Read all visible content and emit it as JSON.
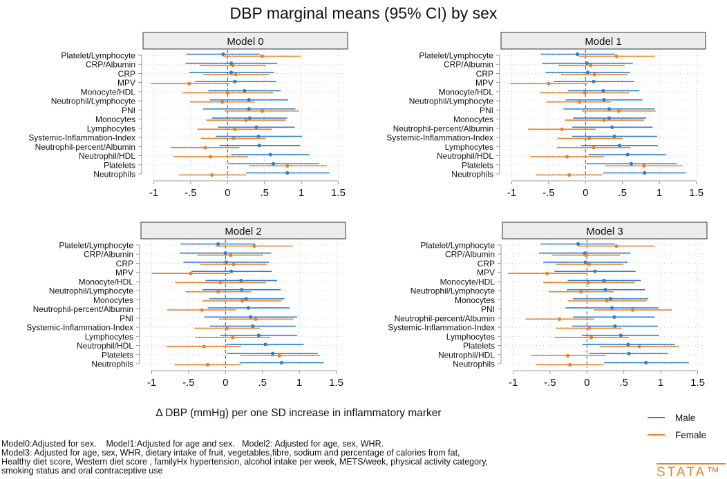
{
  "chart_data": {
    "type": "forest",
    "title": "DBP marginal means (95% CI) by sex",
    "xlabel": "Δ DBP (mmHg) per one SD increase in inflammatory marker",
    "xlim": [
      -1,
      1.5
    ],
    "xticks": [
      -1,
      -0.5,
      0,
      0.5,
      1,
      1.5
    ],
    "xtick_labels": [
      "-1",
      "-.5",
      "0",
      ".5",
      "1",
      "1.5"
    ],
    "grid": true,
    "legend": {
      "position": "bottom-right",
      "entries": [
        {
          "name": "Male",
          "color": "#2a7fd4"
        },
        {
          "name": "Female",
          "color": "#f07f22"
        }
      ]
    },
    "colors": {
      "male": "#2a7fd4",
      "female": "#f07f22",
      "header_fill": "#ececec"
    },
    "panels": [
      {
        "title": "Model 0",
        "rows": [
          {
            "label": "Platelet/Lymphocyte",
            "male": [
              -0.06,
              -0.56,
              0.44
            ],
            "female": [
              0.47,
              -0.06,
              0.99
            ]
          },
          {
            "label": "CRP/Albumin",
            "male": [
              0.05,
              -0.57,
              0.67
            ],
            "female": [
              0.07,
              -0.38,
              0.52
            ]
          },
          {
            "label": "CRP",
            "male": [
              0.05,
              -0.52,
              0.63
            ],
            "female": [
              0.11,
              -0.33,
              0.56
            ]
          },
          {
            "label": "MPV",
            "male": [
              0.1,
              -0.44,
              0.66
            ],
            "female": [
              -0.52,
              -1.04,
              0.02
            ]
          },
          {
            "label": "Monocyte/HDL",
            "male": [
              0.23,
              -0.26,
              0.72
            ],
            "female": [
              0.0,
              -0.61,
              0.62
            ]
          },
          {
            "label": "Neutrophil/Lymphocyte",
            "male": [
              0.29,
              -0.24,
              0.82
            ],
            "female": [
              -0.07,
              -0.51,
              0.37
            ]
          },
          {
            "label": "PNI",
            "male": [
              0.29,
              -0.33,
              0.92
            ],
            "female": [
              0.47,
              -0.04,
              0.97
            ]
          },
          {
            "label": "Monocytes",
            "male": [
              0.3,
              -0.21,
              0.81
            ],
            "female": [
              0.25,
              -0.29,
              0.79
            ]
          },
          {
            "label": "Lymphocytes",
            "male": [
              0.39,
              -0.13,
              0.91
            ],
            "female": [
              0.1,
              -0.41,
              0.6
            ]
          },
          {
            "label": "Systemic-Inflammation-Index",
            "male": [
              0.42,
              -0.16,
              1.01
            ],
            "female": [
              0.08,
              -0.36,
              0.52
            ]
          },
          {
            "label": "Neutrophil-percent/Albumin",
            "male": [
              0.43,
              -0.11,
              0.98
            ],
            "female": [
              -0.3,
              -0.77,
              0.16
            ]
          },
          {
            "label": "Neutrophil/HDL",
            "male": [
              0.58,
              0.05,
              1.11
            ],
            "female": [
              -0.23,
              -0.73,
              0.28
            ]
          },
          {
            "label": "Platelets",
            "male": [
              0.62,
              0.01,
              1.24
            ],
            "female": [
              0.81,
              0.29,
              1.35
            ]
          },
          {
            "label": "Neutrophils",
            "male": [
              0.81,
              0.25,
              1.38
            ],
            "female": [
              -0.21,
              -0.66,
              0.25
            ]
          }
        ]
      },
      {
        "title": "Model 1",
        "rows": [
          {
            "label": "Platelet/Lymphocyte",
            "male": [
              -0.11,
              -0.61,
              0.4
            ],
            "female": [
              0.42,
              -0.09,
              0.94
            ]
          },
          {
            "label": "CRP/Albumin",
            "male": [
              0.02,
              -0.59,
              0.64
            ],
            "female": [
              0.07,
              -0.37,
              0.53
            ]
          },
          {
            "label": "CRP",
            "male": [
              0.03,
              -0.54,
              0.6
            ],
            "female": [
              0.12,
              -0.33,
              0.57
            ]
          },
          {
            "label": "MPV",
            "male": [
              0.11,
              -0.43,
              0.66
            ],
            "female": [
              -0.5,
              -1.02,
              0.03
            ]
          },
          {
            "label": "Monocyte/HDL",
            "male": [
              0.24,
              -0.24,
              0.73
            ],
            "female": [
              -0.01,
              -0.62,
              0.59
            ]
          },
          {
            "label": "Neutrophil/Lymphocyte",
            "male": [
              0.25,
              -0.27,
              0.77
            ],
            "female": [
              -0.08,
              -0.53,
              0.35
            ]
          },
          {
            "label": "PNI",
            "male": [
              0.32,
              -0.3,
              0.94
            ],
            "female": [
              0.45,
              -0.05,
              0.95
            ]
          },
          {
            "label": "Monocytes",
            "male": [
              0.32,
              -0.17,
              0.82
            ],
            "female": [
              0.25,
              -0.28,
              0.79
            ]
          },
          {
            "label": "Neutrophil-percent/Albumin",
            "male": [
              0.36,
              -0.18,
              0.91
            ],
            "female": [
              -0.32,
              -0.78,
              0.14
            ]
          },
          {
            "label": "Systemic-Inflammation-Index",
            "male": [
              0.39,
              -0.18,
              0.97
            ],
            "female": [
              0.05,
              -0.38,
              0.5
            ]
          },
          {
            "label": "Lymphocytes",
            "male": [
              0.46,
              -0.06,
              0.98
            ],
            "female": [
              0.11,
              -0.39,
              0.61
            ]
          },
          {
            "label": "Neutrophil/HDL",
            "male": [
              0.57,
              0.04,
              1.09
            ],
            "female": [
              -0.25,
              -0.75,
              0.25
            ]
          },
          {
            "label": "Platelets",
            "male": [
              0.62,
              0.01,
              1.24
            ],
            "female": [
              0.79,
              0.26,
              1.32
            ]
          },
          {
            "label": "Neutrophils",
            "male": [
              0.8,
              0.24,
              1.36
            ],
            "female": [
              -0.22,
              -0.67,
              0.23
            ]
          }
        ]
      },
      {
        "title": "Model 2",
        "rows": [
          {
            "label": "Platelet/Lymphocyte",
            "male": [
              -0.1,
              -0.61,
              0.4
            ],
            "female": [
              0.39,
              -0.14,
              0.91
            ]
          },
          {
            "label": "CRP/Albumin",
            "male": [
              0.0,
              -0.62,
              0.62
            ],
            "female": [
              0.07,
              -0.38,
              0.51
            ]
          },
          {
            "label": "CRP",
            "male": [
              0.01,
              -0.57,
              0.59
            ],
            "female": [
              0.11,
              -0.34,
              0.56
            ]
          },
          {
            "label": "MPV",
            "male": [
              0.08,
              -0.46,
              0.63
            ],
            "female": [
              -0.47,
              -1.0,
              0.06
            ]
          },
          {
            "label": "Monocyte/HDL",
            "male": [
              0.21,
              -0.27,
              0.7
            ],
            "female": [
              -0.07,
              -0.68,
              0.55
            ]
          },
          {
            "label": "Neutrophil/Lymphocyte",
            "male": [
              0.22,
              -0.31,
              0.75
            ],
            "female": [
              -0.1,
              -0.54,
              0.35
            ]
          },
          {
            "label": "Monocytes",
            "male": [
              0.28,
              -0.22,
              0.8
            ],
            "female": [
              0.23,
              -0.31,
              0.76
            ]
          },
          {
            "label": "Neutrophil-percent/Albumin",
            "male": [
              0.31,
              -0.24,
              0.87
            ],
            "female": [
              -0.32,
              -0.79,
              0.14
            ]
          },
          {
            "label": "PNI",
            "male": [
              0.34,
              -0.29,
              0.97
            ],
            "female": [
              0.41,
              -0.09,
              0.92
            ]
          },
          {
            "label": "Systemic-Inflammation-Index",
            "male": [
              0.37,
              -0.21,
              0.95
            ],
            "female": [
              0.02,
              -0.42,
              0.47
            ]
          },
          {
            "label": "Lymphocytes",
            "male": [
              0.45,
              -0.07,
              0.97
            ],
            "female": [
              0.1,
              -0.41,
              0.61
            ]
          },
          {
            "label": "Neutrophil/HDL",
            "male": [
              0.54,
              0.01,
              1.06
            ],
            "female": [
              -0.29,
              -0.8,
              0.21
            ]
          },
          {
            "label": "Platelets",
            "male": [
              0.64,
              0.02,
              1.25
            ],
            "female": [
              0.73,
              0.2,
              1.28
            ]
          },
          {
            "label": "Neutrophils",
            "male": [
              0.76,
              0.19,
              1.33
            ],
            "female": [
              -0.24,
              -0.69,
              0.21
            ]
          }
        ]
      },
      {
        "title": "Model 3",
        "rows": [
          {
            "label": "Platelet/Lymphocyte",
            "male": [
              -0.12,
              -0.63,
              0.38
            ],
            "female": [
              0.4,
              -0.12,
              0.92
            ]
          },
          {
            "label": "CRP/Albumin",
            "male": [
              -0.03,
              -0.65,
              0.59
            ],
            "female": [
              -0.01,
              -0.47,
              0.45
            ]
          },
          {
            "label": "CRP",
            "male": [
              -0.02,
              -0.59,
              0.55
            ],
            "female": [
              0.03,
              -0.42,
              0.49
            ]
          },
          {
            "label": "MPV",
            "male": [
              0.11,
              -0.44,
              0.66
            ],
            "female": [
              -0.54,
              -1.07,
              0.0
            ]
          },
          {
            "label": "Monocyte/HDL",
            "male": [
              0.23,
              -0.26,
              0.73
            ],
            "female": [
              0.02,
              -0.59,
              0.65
            ]
          },
          {
            "label": "Neutrophil/Lymphocyte",
            "male": [
              0.25,
              -0.27,
              0.79
            ],
            "female": [
              -0.08,
              -0.52,
              0.36
            ]
          },
          {
            "label": "Monocytes",
            "male": [
              0.32,
              -0.19,
              0.83
            ],
            "female": [
              0.27,
              -0.26,
              0.81
            ]
          },
          {
            "label": "PNI",
            "male": [
              0.34,
              -0.29,
              0.97
            ],
            "female": [
              0.62,
              0.09,
              1.15
            ]
          },
          {
            "label": "Neutrophil-percent/Albumin",
            "male": [
              0.37,
              -0.19,
              0.92
            ],
            "female": [
              -0.37,
              -0.83,
              0.1
            ]
          },
          {
            "label": "Systemic-Inflammation-Index",
            "male": [
              0.38,
              -0.2,
              0.96
            ],
            "female": [
              0.03,
              -0.42,
              0.47
            ]
          },
          {
            "label": "Lymphocytes",
            "male": [
              0.46,
              -0.07,
              0.98
            ],
            "female": [
              0.06,
              -0.44,
              0.57
            ]
          },
          {
            "label": "Platelets",
            "male": [
              0.56,
              -0.06,
              1.19
            ],
            "female": [
              0.71,
              0.17,
              1.25
            ]
          },
          {
            "label": "Neutrophil/HDL",
            "male": [
              0.57,
              0.03,
              1.1
            ],
            "female": [
              -0.26,
              -0.76,
              0.26
            ]
          },
          {
            "label": "Neutrophils",
            "male": [
              0.8,
              0.23,
              1.38
            ],
            "female": [
              -0.23,
              -0.69,
              0.22
            ]
          }
        ]
      }
    ],
    "notes": [
      "Model0:Adjusted for sex.    Model1:Adjusted for age and sex.   Model2: Adjusted for age, sex, WHR.",
      "Model3: Adjusted for age, sex, WHR, dietary intake of fruit, vegetables,fibre, sodium and percentage of calories from fat,",
      "Healthy diet score, Western diet score , familyHx hypertension, alcohol intake per week, METS/week, physical activity category,",
      "smoking status and oral contraceptive use"
    ],
    "logo_text": "stata™"
  }
}
